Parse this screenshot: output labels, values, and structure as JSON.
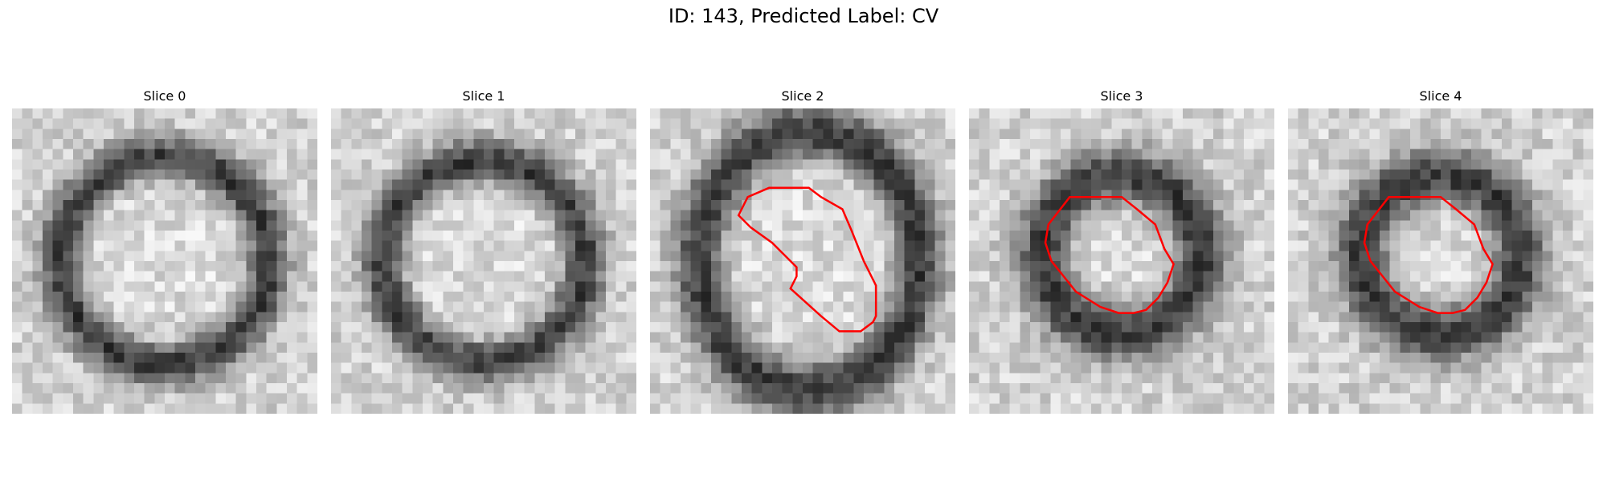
{
  "figure": {
    "title": "ID: 143, Predicted Label: CV"
  },
  "panels": [
    {
      "title": "Slice 0",
      "pattern": "ring",
      "ring_radius": 0.34,
      "ring_width": 0.07,
      "contour": []
    },
    {
      "title": "Slice 1",
      "pattern": "ring",
      "ring_radius": 0.33,
      "ring_width": 0.07,
      "contour": []
    },
    {
      "title": "Slice 2",
      "pattern": "ring",
      "ring_radius": 0.36,
      "ring_width": 0.08,
      "contour": [
        [
          0.29,
          0.35
        ],
        [
          0.32,
          0.29
        ],
        [
          0.39,
          0.26
        ],
        [
          0.52,
          0.26
        ],
        [
          0.56,
          0.29
        ],
        [
          0.63,
          0.33
        ],
        [
          0.66,
          0.4
        ],
        [
          0.7,
          0.5
        ],
        [
          0.74,
          0.58
        ],
        [
          0.74,
          0.68
        ],
        [
          0.73,
          0.7
        ],
        [
          0.69,
          0.73
        ],
        [
          0.62,
          0.73
        ],
        [
          0.56,
          0.68
        ],
        [
          0.46,
          0.59
        ],
        [
          0.48,
          0.55
        ],
        [
          0.48,
          0.52
        ],
        [
          0.4,
          0.44
        ],
        [
          0.33,
          0.39
        ]
      ]
    },
    {
      "title": "Slice 3",
      "pattern": "ring",
      "ring_radius": 0.26,
      "ring_width": 0.09,
      "contour": [
        [
          0.26,
          0.38
        ],
        [
          0.33,
          0.29
        ],
        [
          0.5,
          0.29
        ],
        [
          0.55,
          0.33
        ],
        [
          0.61,
          0.38
        ],
        [
          0.64,
          0.46
        ],
        [
          0.67,
          0.51
        ],
        [
          0.65,
          0.57
        ],
        [
          0.62,
          0.62
        ],
        [
          0.58,
          0.66
        ],
        [
          0.54,
          0.67
        ],
        [
          0.49,
          0.67
        ],
        [
          0.43,
          0.65
        ],
        [
          0.35,
          0.6
        ],
        [
          0.31,
          0.55
        ],
        [
          0.27,
          0.5
        ],
        [
          0.25,
          0.44
        ]
      ]
    },
    {
      "title": "Slice 4",
      "pattern": "ring",
      "ring_radius": 0.26,
      "ring_width": 0.09,
      "contour": [
        [
          0.26,
          0.38
        ],
        [
          0.33,
          0.29
        ],
        [
          0.5,
          0.29
        ],
        [
          0.55,
          0.33
        ],
        [
          0.61,
          0.38
        ],
        [
          0.64,
          0.46
        ],
        [
          0.67,
          0.51
        ],
        [
          0.65,
          0.57
        ],
        [
          0.62,
          0.62
        ],
        [
          0.58,
          0.66
        ],
        [
          0.54,
          0.67
        ],
        [
          0.49,
          0.67
        ],
        [
          0.43,
          0.65
        ],
        [
          0.35,
          0.6
        ],
        [
          0.31,
          0.55
        ],
        [
          0.27,
          0.5
        ],
        [
          0.25,
          0.44
        ]
      ]
    }
  ],
  "colors": {
    "contour": "#ff0000",
    "background": "#ffffff"
  }
}
